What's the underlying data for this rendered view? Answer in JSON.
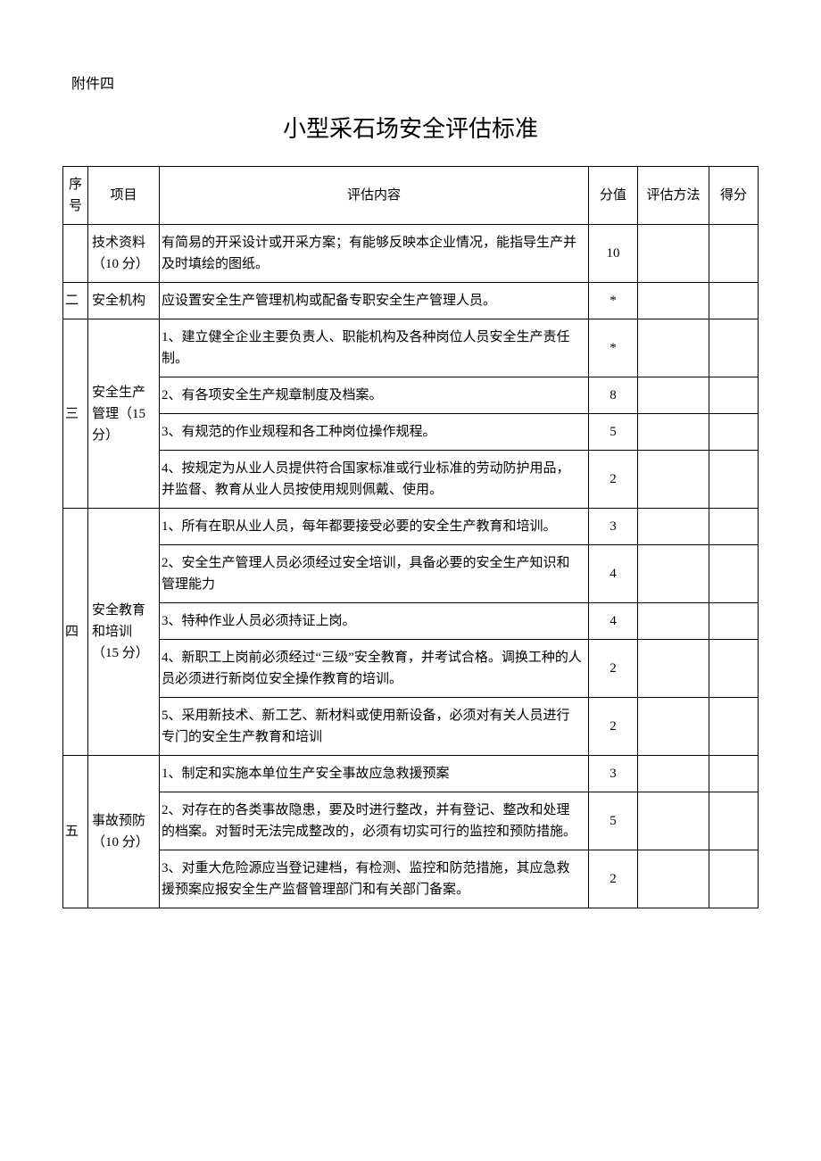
{
  "attachment_label": "附件四",
  "title": "小型采石场安全评估标准",
  "headers": {
    "seq": "序号",
    "item": "项目",
    "content": "评估内容",
    "score": "分值",
    "method": "评估方法",
    "got": "得分"
  },
  "sections": [
    {
      "seq": "",
      "item": "技术资料（10 分）",
      "rows": [
        {
          "content": "有简易的开采设计或开采方案；有能够反映本企业情况，能指导生产并及时填绘的图纸。",
          "score": "10"
        }
      ]
    },
    {
      "seq": "二",
      "item": "安全机构",
      "rows": [
        {
          "content": "应设置安全生产管理机构或配备专职安全生产管理人员。",
          "score": "*"
        }
      ]
    },
    {
      "seq": "三",
      "item": "安全生产管理（15 分）",
      "rows": [
        {
          "content": "1、建立健全企业主要负责人、职能机构及各种岗位人员安全生产责任制。",
          "score": "*"
        },
        {
          "content": "2、有各项安全生产规章制度及档案。",
          "score": "8"
        },
        {
          "content": "3、有规范的作业规程和各工种岗位操作规程。",
          "score": "5"
        },
        {
          "content": "4、按规定为从业人员提供符合国家标准或行业标准的劳动防护用品，并监督、教育从业人员按使用规则佩戴、使用。",
          "score": "2"
        }
      ]
    },
    {
      "seq": "四",
      "item": "安全教育和培训（15 分）",
      "rows": [
        {
          "content": "1、所有在职从业人员，每年都要接受必要的安全生产教育和培训。",
          "score": "3"
        },
        {
          "content": "2、安全生产管理人员必须经过安全培训，具备必要的安全生产知识和管理能力",
          "score": "4"
        },
        {
          "content": "3、特种作业人员必须持证上岗。",
          "score": "4"
        },
        {
          "content": "4、新职工上岗前必须经过“三级”安全教育，并考试合格。调换工种的人员必须进行新岗位安全操作教育的培训。",
          "score": "2"
        },
        {
          "content": "5、采用新技术、新工艺、新材料或使用新设备，必须对有关人员进行专门的安全生产教育和培训",
          "score": "2"
        }
      ]
    },
    {
      "seq": "五",
      "item": "事故预防（10 分）",
      "rows": [
        {
          "content": "1、制定和实施本单位生产安全事故应急救援预案",
          "score": "3"
        },
        {
          "content": "2、对存在的各类事故隐患，要及时进行整改，并有登记、整改和处理的档案。对暂时无法完成整改的，必须有切实可行的监控和预防措施。",
          "score": "5"
        },
        {
          "content": "3、对重大危险源应当登记建档，有检测、监控和防范措施，其应急救援预案应报安全生产监督管理部门和有关部门备案。",
          "score": "2"
        }
      ]
    }
  ]
}
